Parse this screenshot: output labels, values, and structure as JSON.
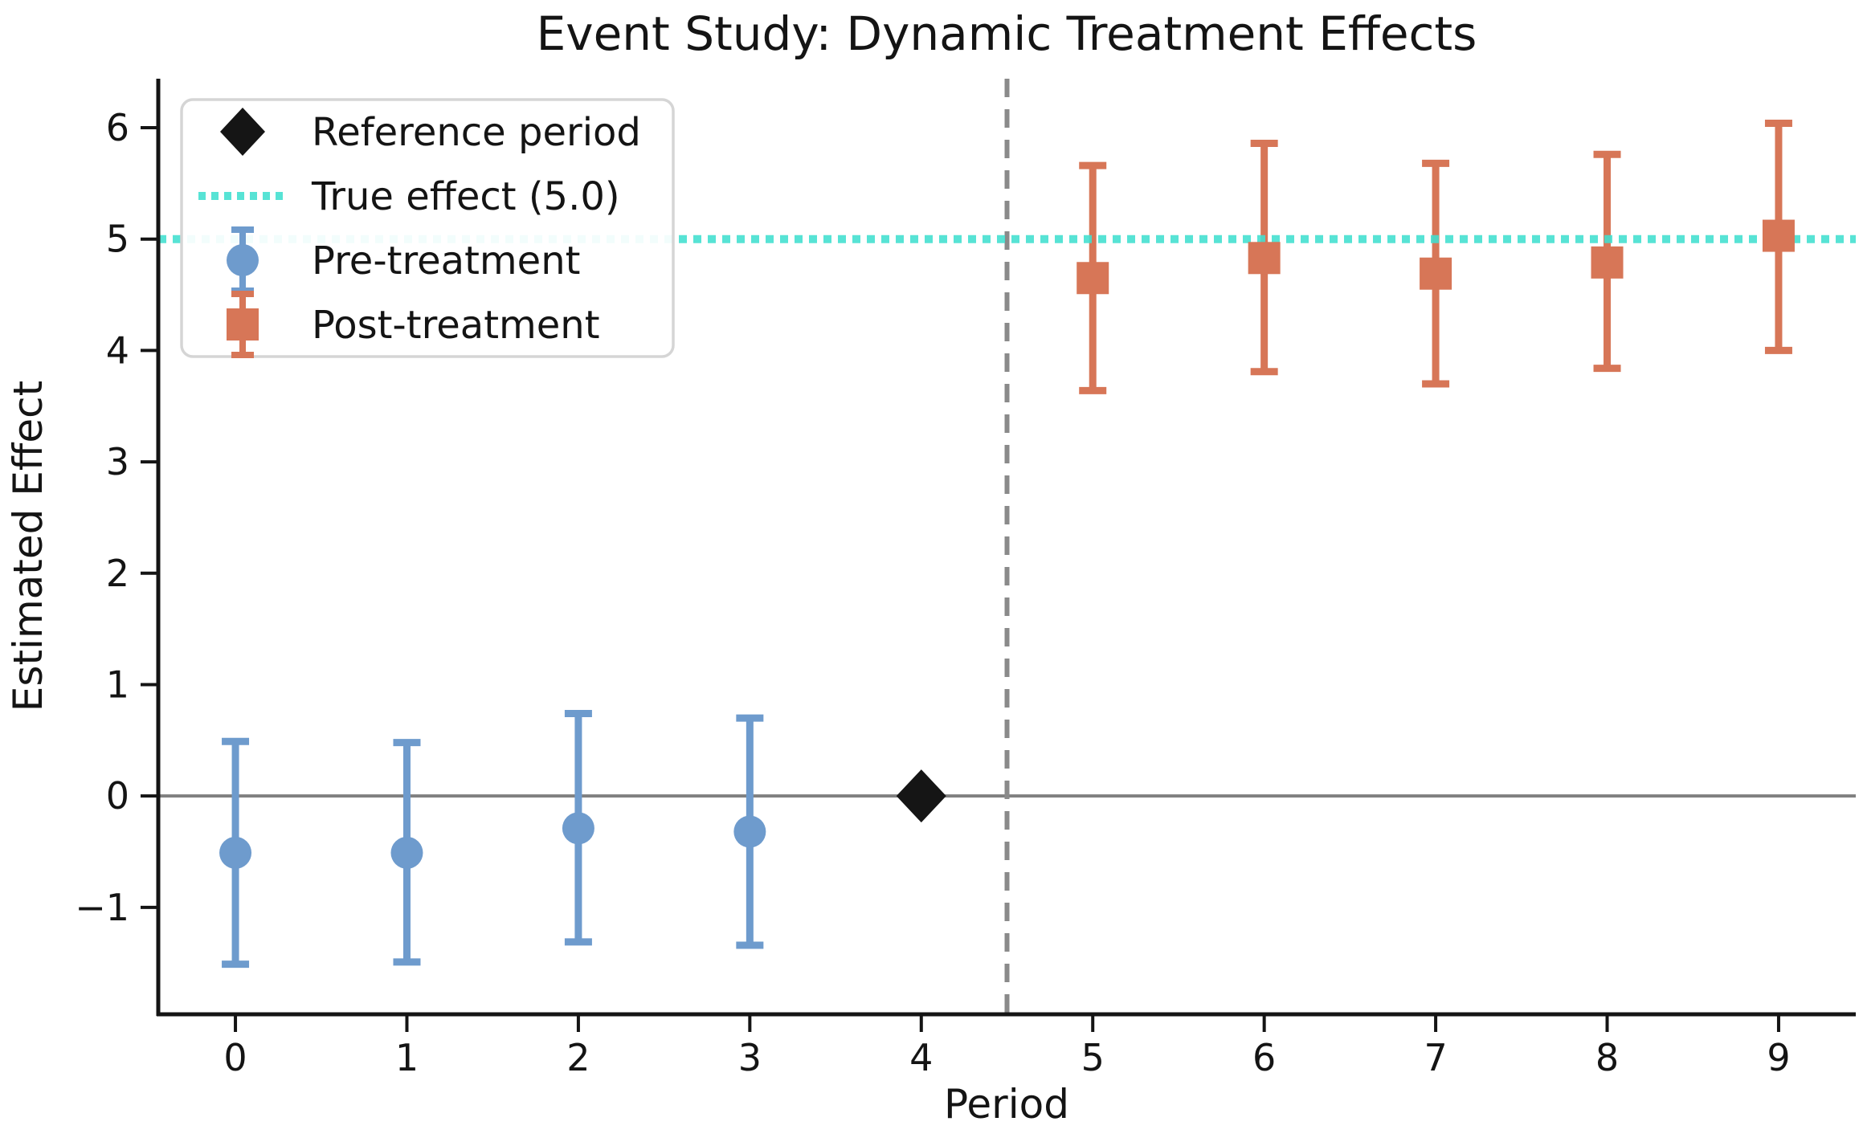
{
  "figure": {
    "background": "#ffffff"
  },
  "chart_data": {
    "type": "scatter",
    "title": "Event Study: Dynamic Treatment Effects",
    "xlabel": "Period",
    "ylabel": "Estimated Effect",
    "xlim": [
      -0.45,
      9.45
    ],
    "ylim": [
      -1.96,
      6.44
    ],
    "grid": false,
    "x_ticks": [
      {
        "value": 0,
        "label": "0"
      },
      {
        "value": 1,
        "label": "1"
      },
      {
        "value": 2,
        "label": "2"
      },
      {
        "value": 3,
        "label": "3"
      },
      {
        "value": 4,
        "label": "4"
      },
      {
        "value": 5,
        "label": "5"
      },
      {
        "value": 6,
        "label": "6"
      },
      {
        "value": 7,
        "label": "7"
      },
      {
        "value": 8,
        "label": "8"
      },
      {
        "value": 9,
        "label": "9"
      }
    ],
    "y_ticks": [
      {
        "value": -1,
        "label": "−1"
      },
      {
        "value": 0,
        "label": "0"
      },
      {
        "value": 1,
        "label": "1"
      },
      {
        "value": 2,
        "label": "2"
      },
      {
        "value": 3,
        "label": "3"
      },
      {
        "value": 4,
        "label": "4"
      },
      {
        "value": 5,
        "label": "5"
      },
      {
        "value": 6,
        "label": "6"
      }
    ],
    "zero_line": {
      "y": 0,
      "color": "#808080"
    },
    "true_effect_line": {
      "y": 5.0,
      "color": "#40E0D0",
      "label": "True effect (5.0)"
    },
    "treatment_divider": {
      "x": 4.5,
      "color": "#8A8A8A"
    },
    "series": [
      {
        "name": "Pre-treatment",
        "marker": "circle",
        "color": "#6E9BCD",
        "points": [
          {
            "x": 0,
            "y": -0.51,
            "ci_low": -1.51,
            "ci_high": 0.49
          },
          {
            "x": 1,
            "y": -0.51,
            "ci_low": -1.49,
            "ci_high": 0.48
          },
          {
            "x": 2,
            "y": -0.29,
            "ci_low": -1.31,
            "ci_high": 0.74
          },
          {
            "x": 3,
            "y": -0.32,
            "ci_low": -1.34,
            "ci_high": 0.7
          }
        ]
      },
      {
        "name": "Post-treatment",
        "marker": "square",
        "color": "#D77657",
        "points": [
          {
            "x": 5,
            "y": 4.65,
            "ci_low": 3.64,
            "ci_high": 5.66
          },
          {
            "x": 6,
            "y": 4.83,
            "ci_low": 3.81,
            "ci_high": 5.86
          },
          {
            "x": 7,
            "y": 4.69,
            "ci_low": 3.7,
            "ci_high": 5.68
          },
          {
            "x": 8,
            "y": 4.79,
            "ci_low": 3.84,
            "ci_high": 5.76
          },
          {
            "x": 9,
            "y": 5.03,
            "ci_low": 4.0,
            "ci_high": 6.04
          }
        ]
      },
      {
        "name": "Reference period",
        "marker": "diamond",
        "color": "#151515",
        "points": [
          {
            "x": 4,
            "y": 0.0
          }
        ]
      }
    ],
    "legend": {
      "position": "upper-left",
      "border_color": "#D5D5D5",
      "entries": [
        {
          "label": "Reference period",
          "marker": "diamond",
          "color": "#151515"
        },
        {
          "label": "True effect (5.0)",
          "marker": "dotted-line",
          "color": "#40E0D0"
        },
        {
          "label": "Pre-treatment",
          "marker": "circle-errorbar",
          "color": "#6E9BCD"
        },
        {
          "label": "Post-treatment",
          "marker": "square-errorbar",
          "color": "#D77657"
        }
      ]
    }
  }
}
